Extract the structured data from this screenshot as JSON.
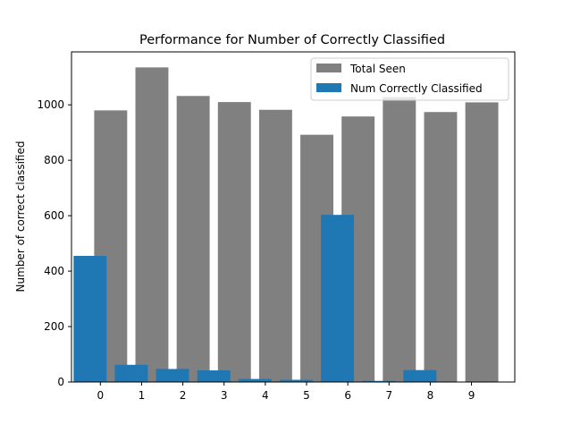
{
  "chart_data": {
    "type": "bar",
    "title": "Performance for Number of Correctly Classified",
    "xlabel": "",
    "ylabel": "Number of correct classified",
    "categories": [
      "0",
      "1",
      "2",
      "3",
      "4",
      "5",
      "6",
      "7",
      "8",
      "9"
    ],
    "yticks": [
      "0",
      "200",
      "400",
      "600",
      "800",
      "1000"
    ],
    "ylim": [
      0,
      1191
    ],
    "xlim": [
      -0.7,
      10.05
    ],
    "grid": false,
    "legend_position": "top-right",
    "series": [
      {
        "name": "Total Seen",
        "color": "#808080",
        "offset": 0.25,
        "values": [
          980,
          1135,
          1032,
          1010,
          982,
          892,
          958,
          1028,
          974,
          1009
        ]
      },
      {
        "name": "Num Correctly Classified",
        "color": "#1f77b4",
        "offset": -0.25,
        "values": [
          455,
          62,
          47,
          42,
          11,
          8,
          603,
          4,
          43,
          0
        ]
      }
    ]
  }
}
